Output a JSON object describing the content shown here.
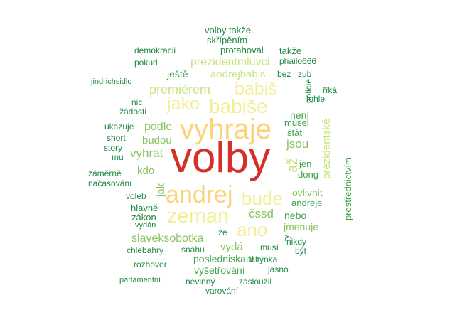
{
  "colors": {
    "red": "#d7302a",
    "orange": "#fcd27a",
    "yellow": "#f4ef97",
    "lightgreen": "#c7e47f",
    "midgreen": "#88c45e",
    "green": "#3fa34a",
    "darkgreen": "#1f8a42"
  },
  "words": [
    {
      "text": "volby",
      "tone": "red"
    },
    {
      "text": "vyhraje",
      "tone": "orange"
    },
    {
      "text": "andrej",
      "tone": "orange"
    },
    {
      "text": "zeman",
      "tone": "yellow"
    },
    {
      "text": "babiše",
      "tone": "yellow"
    },
    {
      "text": "bude",
      "tone": "yellow"
    },
    {
      "text": "ano",
      "tone": "yellow"
    },
    {
      "text": "jako",
      "tone": "yellow"
    },
    {
      "text": "babiš",
      "tone": "yellow"
    },
    {
      "text": "premiérem",
      "tone": "lightgreen"
    },
    {
      "text": "prezidentmluvci",
      "tone": "lightgreen"
    },
    {
      "text": "andrejbabis",
      "tone": "lightgreen"
    },
    {
      "text": "vyhrát",
      "tone": "midgreen"
    },
    {
      "text": "podle",
      "tone": "midgreen"
    },
    {
      "text": "budou",
      "tone": "midgreen"
    },
    {
      "text": "kdo",
      "tone": "midgreen"
    },
    {
      "text": "jak",
      "tone": "midgreen"
    },
    {
      "text": "jsou",
      "tone": "midgreen"
    },
    {
      "text": "až",
      "tone": "lightgreen"
    },
    {
      "text": "čssd",
      "tone": "midgreen"
    },
    {
      "text": "slaveksobotka",
      "tone": "midgreen"
    },
    {
      "text": "vydá",
      "tone": "midgreen"
    },
    {
      "text": "prezidentské",
      "tone": "lightgreen"
    },
    {
      "text": "ovlivnit",
      "tone": "midgreen"
    },
    {
      "text": "jmenuje",
      "tone": "midgreen"
    },
    {
      "text": "nebo",
      "tone": "green"
    },
    {
      "text": "posledniskaut",
      "tone": "green"
    },
    {
      "text": "vyšetřování",
      "tone": "green"
    },
    {
      "text": "ještě",
      "tone": "green"
    },
    {
      "text": "není",
      "tone": "green"
    },
    {
      "text": "musel",
      "tone": "green"
    },
    {
      "text": "stát",
      "tone": "green"
    },
    {
      "text": "jen",
      "tone": "green"
    },
    {
      "text": "dong",
      "tone": "green"
    },
    {
      "text": "andreje",
      "tone": "green"
    },
    {
      "text": "prostřednictvím",
      "tone": "green"
    },
    {
      "text": "volby takže",
      "tone": "darkgreen"
    },
    {
      "text": "skřípěním",
      "tone": "darkgreen"
    },
    {
      "text": "demokracii",
      "tone": "darkgreen"
    },
    {
      "text": "protahoval",
      "tone": "darkgreen"
    },
    {
      "text": "takže",
      "tone": "darkgreen"
    },
    {
      "text": "pokud",
      "tone": "darkgreen"
    },
    {
      "text": "phailo666",
      "tone": "darkgreen"
    },
    {
      "text": "bez",
      "tone": "darkgreen"
    },
    {
      "text": "zub",
      "tone": "darkgreen"
    },
    {
      "text": "jindrichsidlo",
      "tone": "darkgreen"
    },
    {
      "text": "policie",
      "tone": "darkgreen"
    },
    {
      "text": "říká",
      "tone": "darkgreen"
    },
    {
      "text": "tohle",
      "tone": "darkgreen"
    },
    {
      "text": "nic",
      "tone": "darkgreen"
    },
    {
      "text": "žádosti",
      "tone": "darkgreen"
    },
    {
      "text": "ukazuje",
      "tone": "darkgreen"
    },
    {
      "text": "short",
      "tone": "darkgreen"
    },
    {
      "text": "story",
      "tone": "darkgreen"
    },
    {
      "text": "mu",
      "tone": "darkgreen"
    },
    {
      "text": "záměrně",
      "tone": "darkgreen"
    },
    {
      "text": "načasování",
      "tone": "darkgreen"
    },
    {
      "text": "voleb",
      "tone": "darkgreen"
    },
    {
      "text": "hlavně",
      "tone": "darkgreen"
    },
    {
      "text": "zákon",
      "tone": "darkgreen"
    },
    {
      "text": "vydán",
      "tone": "darkgreen"
    },
    {
      "text": "ze",
      "tone": "darkgreen"
    },
    {
      "text": "ty",
      "tone": "darkgreen"
    },
    {
      "text": "nikdy",
      "tone": "darkgreen"
    },
    {
      "text": "chlebahry",
      "tone": "darkgreen"
    },
    {
      "text": "snahu",
      "tone": "darkgreen"
    },
    {
      "text": "musí",
      "tone": "darkgreen"
    },
    {
      "text": "být",
      "tone": "darkgreen"
    },
    {
      "text": "faltýnka",
      "tone": "darkgreen"
    },
    {
      "text": "rozhovor",
      "tone": "darkgreen"
    },
    {
      "text": "jasno",
      "tone": "darkgreen"
    },
    {
      "text": "parlamentní",
      "tone": "darkgreen"
    },
    {
      "text": "nevinný",
      "tone": "darkgreen"
    },
    {
      "text": "zasloužil",
      "tone": "darkgreen"
    },
    {
      "text": "varování",
      "tone": "darkgreen"
    }
  ]
}
